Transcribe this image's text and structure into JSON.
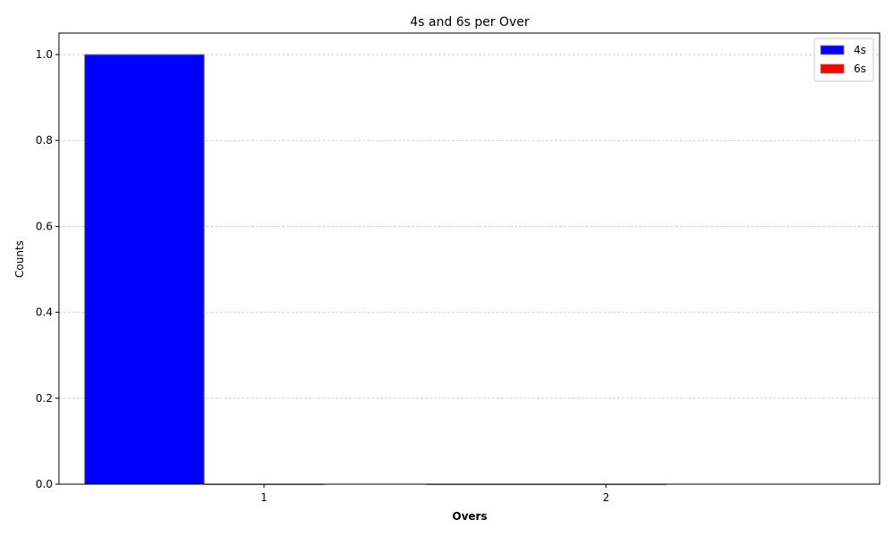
{
  "colors": {
    "fours": "#0000ff",
    "sixes": "#ff0000",
    "bar_edge": "#808080",
    "grid": "#b0b0b0"
  },
  "chart_data": {
    "type": "bar",
    "title": "4s and 6s per Over",
    "xlabel": "Overs",
    "ylabel": "Counts",
    "categories": [
      "1",
      "2"
    ],
    "series": [
      {
        "name": "4s",
        "values": [
          1,
          0
        ],
        "color": "#0000ff"
      },
      {
        "name": "6s",
        "values": [
          0,
          0
        ],
        "color": "#ff0000"
      }
    ],
    "ylim": [
      0,
      1.05
    ],
    "yticks": [
      "0.0",
      "0.2",
      "0.4",
      "0.6",
      "0.8",
      "1.0"
    ],
    "grid": "y-dashed",
    "legend_position": "top-right"
  }
}
